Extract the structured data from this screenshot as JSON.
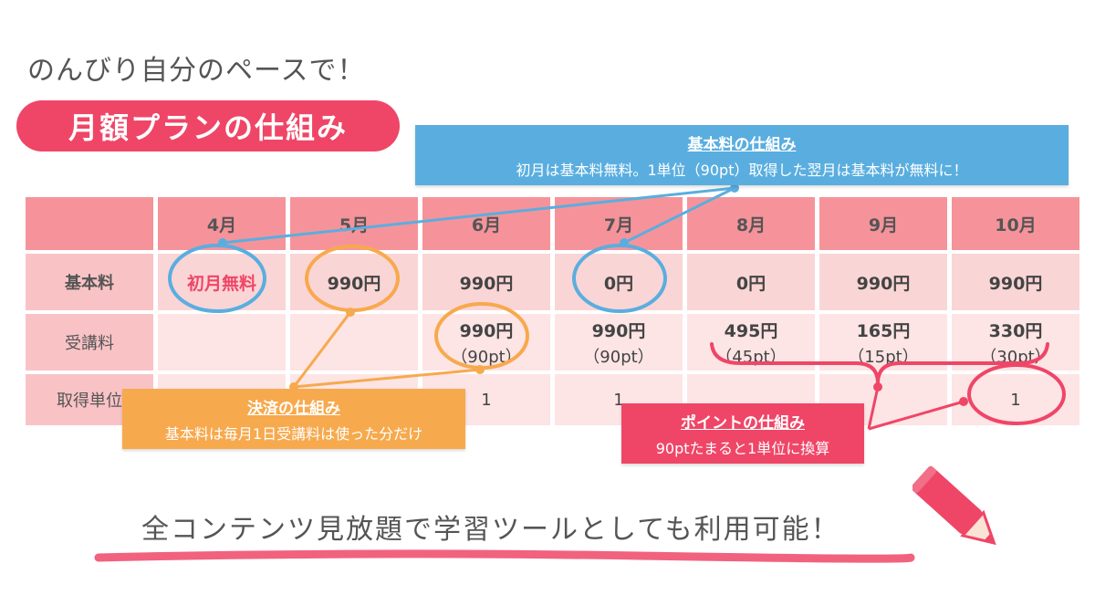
{
  "tagline": "のんびり自分のペースで！",
  "title": "月額プランの仕組み",
  "table": {
    "months": [
      "4月",
      "5月",
      "6月",
      "7月",
      "8月",
      "9月",
      "10月"
    ],
    "rows": {
      "base_fee": {
        "label": "基本料",
        "values": [
          "初月無料",
          "990円",
          "990円",
          "0円",
          "0円",
          "990円",
          "990円"
        ]
      },
      "course_fee": {
        "label": "受講料",
        "values": [
          {
            "yen": "",
            "pt": ""
          },
          {
            "yen": "",
            "pt": ""
          },
          {
            "yen": "990円",
            "pt": "（90pt）"
          },
          {
            "yen": "990円",
            "pt": "（90pt）"
          },
          {
            "yen": "495円",
            "pt": "（45pt）"
          },
          {
            "yen": "165円",
            "pt": "（15pt）"
          },
          {
            "yen": "330円",
            "pt": "（30pt）"
          }
        ]
      },
      "units": {
        "label": "取得単位",
        "values": [
          "",
          "",
          "1",
          "1",
          "",
          "",
          "1"
        ]
      }
    }
  },
  "callouts": {
    "base": {
      "title": "基本料の仕組み",
      "desc": "初月は基本料無料。1単位（90pt）取得した翌月は基本料が無料に！"
    },
    "payment": {
      "title": "決済の仕組み",
      "desc": "基本料は毎月1日受講料は使った分だけ"
    },
    "points": {
      "title": "ポイントの仕組み",
      "desc": "90ptたまると1単位に換算"
    }
  },
  "bottom_text": "全コンテンツ見放題で学習ツールとしても利用可能！",
  "icons": [
    "pencil-icon"
  ],
  "colors": {
    "accent_pink": "#ef4667",
    "header_pink": "#f6939a",
    "callout_blue": "#5aaedf",
    "callout_orange": "#f7a94d",
    "circle_blue": "#5aaedf",
    "circle_orange": "#f7a94d"
  }
}
